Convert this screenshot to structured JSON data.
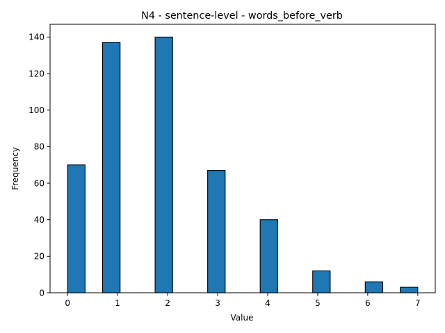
{
  "chart_data": {
    "type": "bar",
    "title": "N4 - sentence-level - words_before_verb",
    "xlabel": "Value",
    "ylabel": "Frequency",
    "bars": [
      {
        "x_start": 0.0,
        "x_end": 0.35,
        "value": 70
      },
      {
        "x_start": 0.7,
        "x_end": 1.05,
        "value": 137
      },
      {
        "x_start": 1.75,
        "x_end": 2.1,
        "value": 140
      },
      {
        "x_start": 2.8,
        "x_end": 3.15,
        "value": 67
      },
      {
        "x_start": 3.85,
        "x_end": 4.2,
        "value": 40
      },
      {
        "x_start": 4.9,
        "x_end": 5.25,
        "value": 12
      },
      {
        "x_start": 5.95,
        "x_end": 6.3,
        "value": 6
      },
      {
        "x_start": 6.65,
        "x_end": 7.0,
        "value": 3
      }
    ],
    "xlim": [
      -0.35,
      7.35
    ],
    "ylim": [
      0,
      147
    ],
    "xticks": [
      0,
      1,
      2,
      3,
      4,
      5,
      6,
      7
    ],
    "yticks": [
      0,
      20,
      40,
      60,
      80,
      100,
      120,
      140
    ],
    "bar_color": "#1f77b4",
    "edge_color": "#000000",
    "grid": false
  }
}
